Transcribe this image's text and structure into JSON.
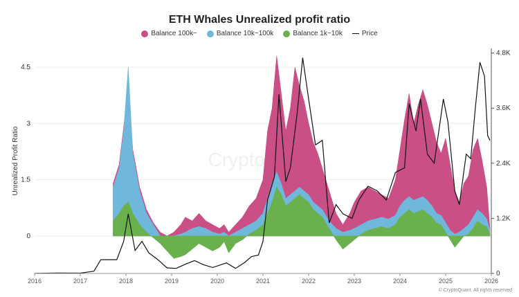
{
  "chart_data": {
    "type": "area",
    "title": "ETH Whales Unrealized profit ratio",
    "ylabel_left": "Unrealized Profit Ratio",
    "left_axis": {
      "min": -1.0,
      "max": 5.0,
      "ticks": [
        0,
        1.5,
        3,
        4.5
      ],
      "tick_labels": [
        "0",
        "1.5",
        "3",
        "4.5"
      ]
    },
    "right_axis": {
      "min": 0,
      "max": 4900,
      "ticks": [
        0,
        1200,
        2400,
        3600,
        4800
      ],
      "tick_labels": [
        "0",
        "1.2K",
        "2.4K",
        "3.6K",
        "4.8K"
      ]
    },
    "x_axis": {
      "min": 2016.0,
      "max": 2026.0,
      "ticks": [
        2016,
        2017,
        2018,
        2019,
        2020,
        2021,
        2022,
        2023,
        2024,
        2025,
        2026
      ],
      "tick_labels": [
        "2016",
        "2017",
        "2018",
        "2019",
        "2020",
        "2021",
        "2022",
        "2023",
        "2024",
        "2025",
        "2026"
      ]
    },
    "legend": [
      "Balance 100k~",
      "Balance 10k~100k",
      "Balance 1k~10k",
      "Price"
    ],
    "colors": {
      "b100k": "#c94f86",
      "b10k": "#6fb8dc",
      "b1k": "#6ab04c",
      "price": "#111111"
    },
    "series": [
      {
        "name": "Balance 1k~10k",
        "x": [
          2017.72,
          2017.85,
          2017.95,
          2018.05,
          2018.15,
          2018.3,
          2018.45,
          2018.6,
          2018.75,
          2018.9,
          2019.05,
          2019.2,
          2019.3,
          2019.45,
          2019.6,
          2019.75,
          2019.9,
          2020.05,
          2020.15,
          2020.25,
          2020.4,
          2020.55,
          2020.7,
          2020.85,
          2021.0,
          2021.1,
          2021.2,
          2021.3,
          2021.4,
          2021.5,
          2021.6,
          2021.7,
          2021.8,
          2021.9,
          2022.0,
          2022.1,
          2022.2,
          2022.3,
          2022.45,
          2022.6,
          2022.75,
          2022.9,
          2023.0,
          2023.15,
          2023.3,
          2023.45,
          2023.6,
          2023.75,
          2023.9,
          2024.0,
          2024.1,
          2024.2,
          2024.3,
          2024.4,
          2024.5,
          2024.6,
          2024.7,
          2024.8,
          2024.9,
          2025.0,
          2025.1,
          2025.2,
          2025.3,
          2025.4,
          2025.5,
          2025.6,
          2025.7,
          2025.8,
          2025.9,
          2025.97
        ],
        "values": [
          0.4,
          0.6,
          0.8,
          0.9,
          0.6,
          0.3,
          0.1,
          -0.05,
          -0.2,
          -0.4,
          -0.6,
          -0.55,
          -0.5,
          -0.35,
          -0.2,
          -0.3,
          -0.4,
          -0.3,
          -0.15,
          -0.45,
          -0.2,
          -0.1,
          0.05,
          0.15,
          0.3,
          0.6,
          0.9,
          1.3,
          1.1,
          0.8,
          0.9,
          1.0,
          1.1,
          1.0,
          0.9,
          0.7,
          0.6,
          0.5,
          0.2,
          -0.1,
          -0.35,
          -0.2,
          -0.1,
          0.05,
          0.15,
          0.2,
          0.25,
          0.2,
          0.3,
          0.5,
          0.6,
          0.7,
          0.6,
          0.65,
          0.7,
          0.6,
          0.5,
          0.35,
          0.3,
          0.1,
          -0.1,
          -0.3,
          -0.15,
          0.0,
          0.05,
          0.2,
          0.4,
          0.3,
          0.25,
          0.05
        ]
      },
      {
        "name": "Balance 10k~100k",
        "x": [
          2017.72,
          2017.85,
          2017.95,
          2018.05,
          2018.15,
          2018.3,
          2018.45,
          2018.6,
          2018.75,
          2018.9,
          2019.05,
          2019.2,
          2019.3,
          2019.45,
          2019.6,
          2019.75,
          2019.9,
          2020.05,
          2020.15,
          2020.25,
          2020.4,
          2020.55,
          2020.7,
          2020.85,
          2021.0,
          2021.1,
          2021.2,
          2021.3,
          2021.4,
          2021.5,
          2021.6,
          2021.7,
          2021.8,
          2021.9,
          2022.0,
          2022.1,
          2022.2,
          2022.3,
          2022.45,
          2022.6,
          2022.75,
          2022.9,
          2023.0,
          2023.15,
          2023.3,
          2023.45,
          2023.6,
          2023.75,
          2023.9,
          2024.0,
          2024.1,
          2024.2,
          2024.3,
          2024.4,
          2024.5,
          2024.6,
          2024.7,
          2024.8,
          2024.9,
          2025.0,
          2025.1,
          2025.2,
          2025.3,
          2025.4,
          2025.5,
          2025.6,
          2025.7,
          2025.8,
          2025.9,
          2025.97
        ],
        "values": [
          1.3,
          1.8,
          2.8,
          4.5,
          2.2,
          1.2,
          0.6,
          0.3,
          0.0,
          0.0,
          0.0,
          0.05,
          0.1,
          0.2,
          0.25,
          0.2,
          0.1,
          0.05,
          0.1,
          0.0,
          0.1,
          0.2,
          0.3,
          0.4,
          0.6,
          1.0,
          1.4,
          1.7,
          1.4,
          1.0,
          1.1,
          1.2,
          1.3,
          1.2,
          1.1,
          0.9,
          0.8,
          0.7,
          0.4,
          0.2,
          0.1,
          0.15,
          0.2,
          0.3,
          0.4,
          0.45,
          0.5,
          0.45,
          0.55,
          0.8,
          0.95,
          1.05,
          0.95,
          1.0,
          1.05,
          0.95,
          0.8,
          0.6,
          0.55,
          0.35,
          0.15,
          0.05,
          0.1,
          0.2,
          0.3,
          0.5,
          0.7,
          0.6,
          0.45,
          0.15
        ]
      },
      {
        "name": "Balance 100k~",
        "x": [
          2017.72,
          2017.85,
          2017.95,
          2018.05,
          2018.15,
          2018.3,
          2018.45,
          2018.6,
          2018.75,
          2018.9,
          2019.05,
          2019.2,
          2019.3,
          2019.45,
          2019.6,
          2019.75,
          2019.9,
          2020.05,
          2020.15,
          2020.25,
          2020.4,
          2020.55,
          2020.7,
          2020.85,
          2021.0,
          2021.1,
          2021.2,
          2021.3,
          2021.4,
          2021.5,
          2021.6,
          2021.7,
          2021.8,
          2021.9,
          2022.0,
          2022.1,
          2022.2,
          2022.3,
          2022.45,
          2022.6,
          2022.75,
          2022.9,
          2023.0,
          2023.15,
          2023.3,
          2023.45,
          2023.6,
          2023.75,
          2023.9,
          2024.0,
          2024.1,
          2024.2,
          2024.3,
          2024.4,
          2024.5,
          2024.6,
          2024.7,
          2024.8,
          2024.9,
          2025.0,
          2025.1,
          2025.2,
          2025.3,
          2025.4,
          2025.5,
          2025.6,
          2025.7,
          2025.8,
          2025.9,
          2025.97
        ],
        "values": [
          1.4,
          1.9,
          2.9,
          4.0,
          2.3,
          1.3,
          0.7,
          0.35,
          0.1,
          0.0,
          0.1,
          0.3,
          0.5,
          0.4,
          0.6,
          0.4,
          0.3,
          0.2,
          0.3,
          0.1,
          0.3,
          0.5,
          0.8,
          1.0,
          1.5,
          2.8,
          3.4,
          4.8,
          3.8,
          2.8,
          3.4,
          4.5,
          4.0,
          3.6,
          3.0,
          2.5,
          2.2,
          1.8,
          1.2,
          0.6,
          0.3,
          0.6,
          0.9,
          1.2,
          1.3,
          1.2,
          1.1,
          1.0,
          1.5,
          2.3,
          3.1,
          3.8,
          3.0,
          3.5,
          3.9,
          3.5,
          3.0,
          2.5,
          2.2,
          2.6,
          1.9,
          1.2,
          0.9,
          1.4,
          1.6,
          2.3,
          2.6,
          2.0,
          1.3,
          0.2
        ]
      },
      {
        "name": "Price",
        "x": [
          2016.0,
          2016.5,
          2017.0,
          2017.3,
          2017.45,
          2017.6,
          2017.8,
          2017.95,
          2018.05,
          2018.2,
          2018.35,
          2018.5,
          2018.7,
          2018.9,
          2019.1,
          2019.3,
          2019.5,
          2019.7,
          2019.9,
          2020.2,
          2020.4,
          2020.6,
          2020.75,
          2020.9,
          2021.0,
          2021.1,
          2021.25,
          2021.35,
          2021.5,
          2021.6,
          2021.75,
          2021.87,
          2022.0,
          2022.15,
          2022.3,
          2022.45,
          2022.6,
          2022.75,
          2022.95,
          2023.1,
          2023.3,
          2023.5,
          2023.7,
          2023.9,
          2024.1,
          2024.2,
          2024.35,
          2024.45,
          2024.6,
          2024.75,
          2024.95,
          2025.05,
          2025.2,
          2025.3,
          2025.45,
          2025.55,
          2025.65,
          2025.75,
          2025.85,
          2025.92,
          2025.97
        ],
        "values": [
          1,
          10,
          8,
          50,
          300,
          300,
          300,
          700,
          1300,
          500,
          700,
          450,
          300,
          120,
          110,
          200,
          280,
          190,
          130,
          230,
          110,
          240,
          370,
          400,
          700,
          1600,
          2100,
          3900,
          2000,
          2300,
          3500,
          4700,
          3800,
          2800,
          2900,
          1100,
          1500,
          1300,
          1200,
          1600,
          1900,
          1800,
          1600,
          2200,
          2300,
          3700,
          3100,
          3800,
          2600,
          2400,
          3800,
          3300,
          1800,
          1500,
          2600,
          2500,
          3600,
          4600,
          4300,
          3000,
          2900
        ]
      }
    ]
  },
  "watermark": "CryptoQuant",
  "credit": "© CryptoQuant. All rights reserved"
}
